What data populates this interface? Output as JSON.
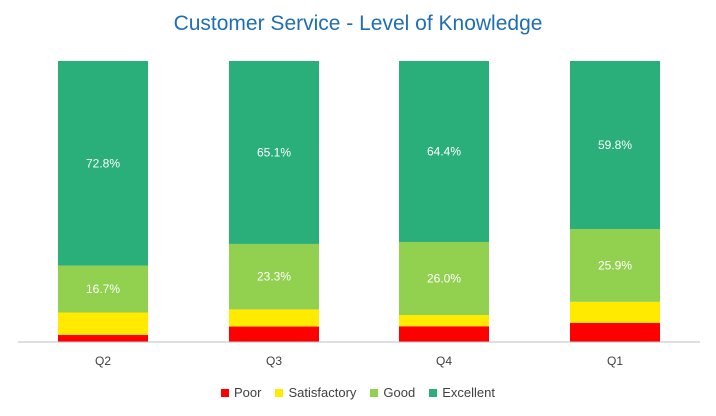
{
  "chart_data": {
    "type": "bar",
    "stacked": true,
    "title": "Customer Service - Level of Knowledge",
    "categories": [
      "Q2",
      "Q3",
      "Q4",
      "Q1"
    ],
    "ylim": [
      0,
      100
    ],
    "grid": false,
    "legend_position": "bottom",
    "series": [
      {
        "name": "Poor",
        "color": "#ff0000",
        "values": [
          2.5,
          5.5,
          5.6,
          6.8
        ],
        "labels": [
          "",
          "",
          "",
          ""
        ]
      },
      {
        "name": "Satisfactory",
        "color": "#ffea00",
        "values": [
          8.0,
          6.1,
          4.0,
          7.5
        ],
        "labels": [
          "",
          "",
          "",
          ""
        ]
      },
      {
        "name": "Good",
        "color": "#92d050",
        "values": [
          16.7,
          23.3,
          26.0,
          25.9
        ],
        "labels": [
          "16.7%",
          "23.3%",
          "26.0%",
          "25.9%"
        ]
      },
      {
        "name": "Excellent",
        "color": "#2aae7a",
        "values": [
          72.8,
          65.1,
          64.4,
          59.8
        ],
        "labels": [
          "72.8%",
          "65.1%",
          "64.4%",
          "59.8%"
        ]
      }
    ]
  }
}
